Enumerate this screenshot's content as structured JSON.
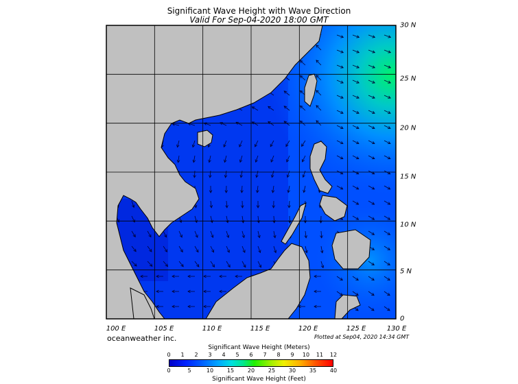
{
  "title": "Significant Wave Height with Wave Direction",
  "subtitle": "Valid For Sep-04-2020 18:00 GMT",
  "x_labels": [
    "100 E",
    "105 E",
    "110 E",
    "115 E",
    "120 E",
    "125 E",
    "130 E"
  ],
  "y_labels": [
    "30 N",
    "25 N",
    "20 N",
    "15 N",
    "10 N",
    "5 N",
    "0"
  ],
  "credit": "oceanweather inc.",
  "plotted": "Plotted at Sep04, 2020 14:34 GMT",
  "colorbar": {
    "meters_title": "Significant Wave Height (Meters)",
    "meters_ticks": [
      "0",
      "1",
      "2",
      "3",
      "4",
      "5",
      "6",
      "7",
      "8",
      "9",
      "10",
      "11",
      "12"
    ],
    "feet_title": "Significant Wave Height (Feet)",
    "feet_ticks": [
      "0",
      "5",
      "10",
      "15",
      "20",
      "25",
      "30",
      "35",
      "40"
    ]
  },
  "colors": {
    "land": "#c0c0c0",
    "deep": "#0020e0",
    "mid": "#0050ff",
    "high": "#00e080",
    "arrows": "#000033"
  },
  "map": {
    "lon_range": [
      100,
      130
    ],
    "lat_range": [
      0,
      30
    ],
    "grid_step_deg": 5
  }
}
